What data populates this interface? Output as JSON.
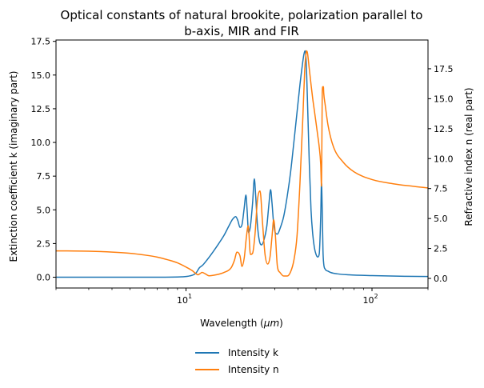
{
  "chart_data": {
    "type": "line",
    "title_lines": [
      "Optical constants of natural brookite, polarization parallel to",
      "b-axis, MIR and FIR"
    ],
    "xlabel_prefix": "Wavelength (",
    "xlabel_unit": "μm",
    "xlabel_suffix": ")",
    "ylabel_left": "Extinction coefficient k (imaginary part)",
    "ylabel_right": "Refractive index n (real part)",
    "x_scale": "log",
    "xlim": [
      2,
      200
    ],
    "ylim_left": [
      -0.8,
      17.6
    ],
    "ylim_right": [
      -0.8,
      19.9
    ],
    "x_ticks": [
      {
        "value": 10,
        "base": "10",
        "exp": "1"
      },
      {
        "value": 100,
        "base": "10",
        "exp": "2"
      }
    ],
    "y_left_ticks": [
      0.0,
      2.5,
      5.0,
      7.5,
      10.0,
      12.5,
      15.0,
      17.5
    ],
    "y_left_tick_labels": [
      "0.0",
      "2.5",
      "5.0",
      "7.5",
      "10.0",
      "12.5",
      "15.0",
      "17.5"
    ],
    "y_right_ticks": [
      0.0,
      2.5,
      5.0,
      7.5,
      10.0,
      12.5,
      15.0,
      17.5
    ],
    "y_right_tick_labels": [
      "0.0",
      "2.5",
      "5.0",
      "7.5",
      "10.0",
      "12.5",
      "15.0",
      "17.5"
    ],
    "grid": false,
    "legend_position": "below the plot, centered",
    "series": [
      {
        "name": "Intensity k",
        "axis": "left",
        "color": "#1f77b4",
        "x": [
          2.0,
          4.0,
          7.0,
          9.5,
          10.5,
          11.3,
          11.8,
          12.3,
          13.0,
          14.0,
          15.0,
          16.0,
          17.0,
          17.8,
          18.5,
          19.0,
          19.5,
          20.0,
          20.5,
          21.0,
          21.3,
          21.7,
          22.2,
          22.8,
          23.3,
          23.7,
          24.2,
          24.8,
          25.5,
          26.3,
          27.2,
          27.9,
          28.5,
          29.0,
          29.5,
          30.2,
          31.0,
          32.0,
          33.5,
          35.0,
          36.5,
          38.0,
          39.5,
          41.0,
          42.0,
          43.0,
          43.6,
          44.2,
          45.0,
          46.0,
          47.0,
          48.0,
          49.0,
          50.0,
          51.0,
          52.0,
          53.0,
          53.5,
          54.0,
          54.5,
          55.0,
          56.0,
          58.0,
          60.0,
          65.0,
          75.0,
          100.0,
          150.0,
          200.0
        ],
        "y": [
          0.0,
          0.0,
          0.0,
          0.03,
          0.1,
          0.3,
          0.7,
          0.9,
          1.3,
          1.9,
          2.5,
          3.1,
          3.8,
          4.3,
          4.5,
          4.2,
          3.7,
          3.9,
          5.0,
          6.1,
          5.0,
          3.3,
          3.8,
          5.5,
          7.3,
          6.0,
          3.9,
          2.7,
          2.4,
          2.8,
          3.8,
          5.4,
          6.5,
          5.5,
          4.2,
          3.3,
          3.2,
          3.6,
          4.5,
          6.0,
          7.8,
          10.0,
          12.2,
          14.3,
          15.5,
          16.5,
          16.8,
          16.2,
          13.0,
          8.5,
          5.0,
          3.2,
          2.2,
          1.7,
          1.5,
          1.7,
          4.5,
          7.0,
          5.0,
          2.0,
          1.0,
          0.6,
          0.45,
          0.35,
          0.25,
          0.18,
          0.12,
          0.07,
          0.05
        ]
      },
      {
        "name": "Intensity n",
        "axis": "right",
        "color": "#ff7f0e",
        "x": [
          2.0,
          3.0,
          4.0,
          5.0,
          6.0,
          7.0,
          8.0,
          9.0,
          10.0,
          10.8,
          11.3,
          11.6,
          11.9,
          12.2,
          12.7,
          13.3,
          14.5,
          16.0,
          17.5,
          18.2,
          18.8,
          19.5,
          20.0,
          20.6,
          21.1,
          21.6,
          22.2,
          22.8,
          23.5,
          24.2,
          25.0,
          25.8,
          26.6,
          27.5,
          28.3,
          29.0,
          29.6,
          30.2,
          31.0,
          32.0,
          33.5,
          35.0,
          36.5,
          38.0,
          39.5,
          41.0,
          42.5,
          43.5,
          44.0,
          44.5,
          45.0,
          46.0,
          47.0,
          48.0,
          49.0,
          50.0,
          51.0,
          52.0,
          53.0,
          53.5,
          53.8,
          54.0,
          54.4,
          54.8,
          55.0,
          56.0,
          58.0,
          62.0,
          70.0,
          80.0,
          100.0,
          130.0,
          200.0
        ],
        "y": [
          2.3,
          2.27,
          2.2,
          2.1,
          1.95,
          1.78,
          1.55,
          1.3,
          0.95,
          0.65,
          0.4,
          0.3,
          0.4,
          0.5,
          0.38,
          0.22,
          0.3,
          0.5,
          0.9,
          1.5,
          2.2,
          1.9,
          1.0,
          1.8,
          3.4,
          4.4,
          2.0,
          2.1,
          3.7,
          6.5,
          7.3,
          4.6,
          2.0,
          1.2,
          1.8,
          3.5,
          4.9,
          3.7,
          1.0,
          0.5,
          0.2,
          0.2,
          0.55,
          1.5,
          3.5,
          8.0,
          13.5,
          17.5,
          18.5,
          19.0,
          18.8,
          17.5,
          16.2,
          15.0,
          14.0,
          13.0,
          12.0,
          11.0,
          9.5,
          7.7,
          12.0,
          15.5,
          16.0,
          16.0,
          15.5,
          14.5,
          12.8,
          11.0,
          9.7,
          8.9,
          8.25,
          7.9,
          7.55
        ]
      }
    ]
  }
}
